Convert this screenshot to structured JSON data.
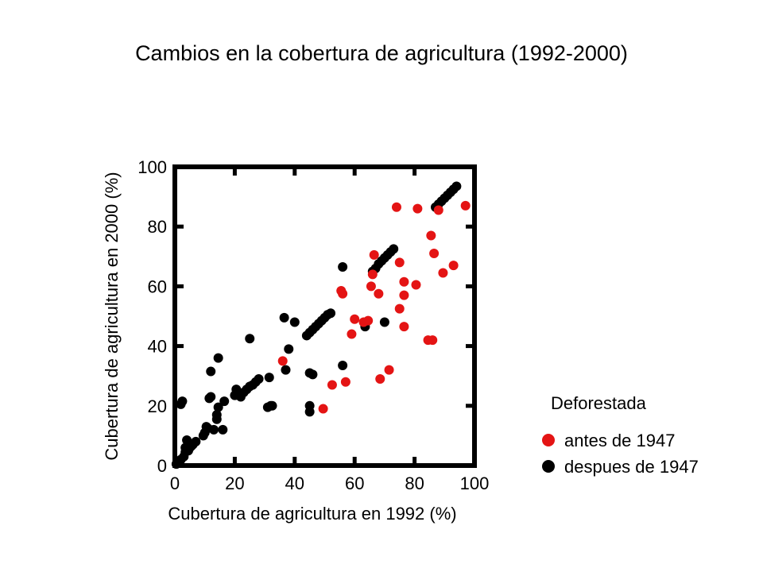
{
  "chart_data": {
    "type": "scatter",
    "title": "Cambios en la cobertura de agricultura (1992-2000)",
    "xlabel": "Cubertura de agricultura en 1992 (%)",
    "ylabel": "Cubertura de agricultura en 2000 (%)",
    "xlim": [
      0,
      100
    ],
    "ylim": [
      0,
      100
    ],
    "xticks": [
      "0",
      "20",
      "40",
      "60",
      "80",
      "100"
    ],
    "yticks": [
      "0",
      "20",
      "40",
      "60",
      "80",
      "100"
    ],
    "grid": false,
    "legend_position": "bottom-right, outside",
    "legend": {
      "title": "Deforestada",
      "entries": [
        {
          "name": "antes de 1947",
          "color": "#e41414"
        },
        {
          "name": "despues de 1947",
          "color": "#000000"
        }
      ]
    },
    "series": [
      {
        "name": "antes de 1947",
        "color": "#e41414",
        "points": [
          [
            36,
            35
          ],
          [
            49.5,
            19
          ],
          [
            52.5,
            27
          ],
          [
            55.5,
            58.5
          ],
          [
            56,
            57.5
          ],
          [
            57,
            28
          ],
          [
            59,
            44
          ],
          [
            60,
            49
          ],
          [
            63,
            48
          ],
          [
            64.5,
            48.5
          ],
          [
            65.5,
            60
          ],
          [
            66,
            64
          ],
          [
            66.5,
            70.5
          ],
          [
            68,
            57.5
          ],
          [
            68.5,
            29
          ],
          [
            71.5,
            32
          ],
          [
            74,
            86.5
          ],
          [
            75,
            68
          ],
          [
            75,
            52.5
          ],
          [
            76.5,
            61.5
          ],
          [
            76.5,
            57
          ],
          [
            76.5,
            46.5
          ],
          [
            80.5,
            60.5
          ],
          [
            81,
            86
          ],
          [
            84.5,
            42
          ],
          [
            85.5,
            77
          ],
          [
            86,
            42
          ],
          [
            86.5,
            71
          ],
          [
            88,
            85.5
          ],
          [
            89.5,
            64.5
          ],
          [
            93,
            67
          ],
          [
            97,
            87
          ]
        ]
      },
      {
        "name": "despues de 1947",
        "color": "#000000",
        "points": [
          [
            0.5,
            0.5
          ],
          [
            1,
            1
          ],
          [
            1.5,
            1.5
          ],
          [
            2,
            2
          ],
          [
            2,
            20.5
          ],
          [
            2.5,
            21.5
          ],
          [
            3,
            3
          ],
          [
            3.5,
            4.5
          ],
          [
            3.5,
            6
          ],
          [
            4,
            8.5
          ],
          [
            4.5,
            5
          ],
          [
            5,
            6
          ],
          [
            5.5,
            6.5
          ],
          [
            6,
            7
          ],
          [
            7,
            8
          ],
          [
            9.5,
            10
          ],
          [
            10,
            11
          ],
          [
            10.5,
            13
          ],
          [
            11,
            12.5
          ],
          [
            11.5,
            22.5
          ],
          [
            12,
            23
          ],
          [
            12,
            31.5
          ],
          [
            13,
            12
          ],
          [
            14,
            15.5
          ],
          [
            14,
            17
          ],
          [
            14.5,
            19.5
          ],
          [
            14.5,
            36
          ],
          [
            16,
            12
          ],
          [
            16.5,
            21.5
          ],
          [
            20,
            23.5
          ],
          [
            20.5,
            25.5
          ],
          [
            22,
            23
          ],
          [
            23,
            24.5
          ],
          [
            24,
            25.5
          ],
          [
            25,
            26.5
          ],
          [
            25,
            42.5
          ],
          [
            26,
            27
          ],
          [
            27,
            28
          ],
          [
            28,
            29
          ],
          [
            31,
            19.5
          ],
          [
            31.5,
            29.5
          ],
          [
            32,
            20
          ],
          [
            32.5,
            20
          ],
          [
            36.5,
            49.5
          ],
          [
            37,
            32
          ],
          [
            38,
            39
          ],
          [
            40,
            48
          ],
          [
            44,
            43.5
          ],
          [
            45,
            44.5
          ],
          [
            46,
            45.5
          ],
          [
            47,
            46.5
          ],
          [
            48,
            47.5
          ],
          [
            49,
            48.5
          ],
          [
            50,
            49.5
          ],
          [
            51,
            50.5
          ],
          [
            52,
            51
          ],
          [
            45,
            18
          ],
          [
            45,
            20
          ],
          [
            45,
            31
          ],
          [
            46,
            30.5
          ],
          [
            56,
            33.5
          ],
          [
            56,
            66.5
          ],
          [
            63.5,
            46.5
          ],
          [
            66,
            65
          ],
          [
            67,
            66
          ],
          [
            68,
            67.5
          ],
          [
            69,
            68.5
          ],
          [
            70,
            69.5
          ],
          [
            71,
            70.5
          ],
          [
            72,
            71.5
          ],
          [
            73,
            72.5
          ],
          [
            70,
            48
          ],
          [
            87,
            86.5
          ],
          [
            88,
            87.5
          ],
          [
            89,
            88.5
          ],
          [
            90,
            89.5
          ],
          [
            91,
            90.5
          ],
          [
            92,
            91.5
          ],
          [
            93,
            92.5
          ],
          [
            94,
            93.5
          ]
        ]
      }
    ]
  }
}
